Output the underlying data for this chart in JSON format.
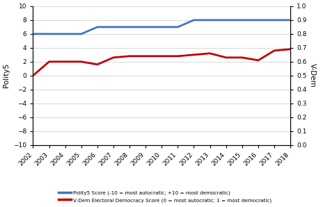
{
  "years": [
    2002,
    2003,
    2004,
    2005,
    2006,
    2007,
    2008,
    2009,
    2010,
    2011,
    2012,
    2013,
    2014,
    2015,
    2016,
    2017,
    2018
  ],
  "polity5": [
    6,
    6,
    6,
    6,
    7,
    7,
    7,
    7,
    7,
    7,
    8,
    8,
    8,
    8,
    8,
    8,
    8
  ],
  "vdem": [
    0.5,
    0.6,
    0.6,
    0.6,
    0.58,
    0.63,
    0.64,
    0.64,
    0.64,
    0.64,
    0.65,
    0.66,
    0.63,
    0.63,
    0.61,
    0.68,
    0.69
  ],
  "polity5_color": "#4472C4",
  "vdem_color": "#C00000",
  "left_ylim": [
    -10,
    10
  ],
  "right_ylim": [
    0,
    1
  ],
  "left_yticks": [
    -10,
    -8,
    -6,
    -4,
    -2,
    0,
    2,
    4,
    6,
    8,
    10
  ],
  "right_yticks": [
    0,
    0.1,
    0.2,
    0.3,
    0.4,
    0.5,
    0.6,
    0.7,
    0.8,
    0.9,
    1.0
  ],
  "left_ylabel": "Polity5",
  "right_ylabel": "V-Dem",
  "legend1": "Polity5 Score (-10 = most autocratic; +10 = most democratic)",
  "legend2": "V-Dem Electoral Democracy Score (0 = most autocratic; 1 = most democratic)",
  "line_width": 2.0,
  "bg_color": "#ffffff",
  "grid_color": "#c8c8c8"
}
